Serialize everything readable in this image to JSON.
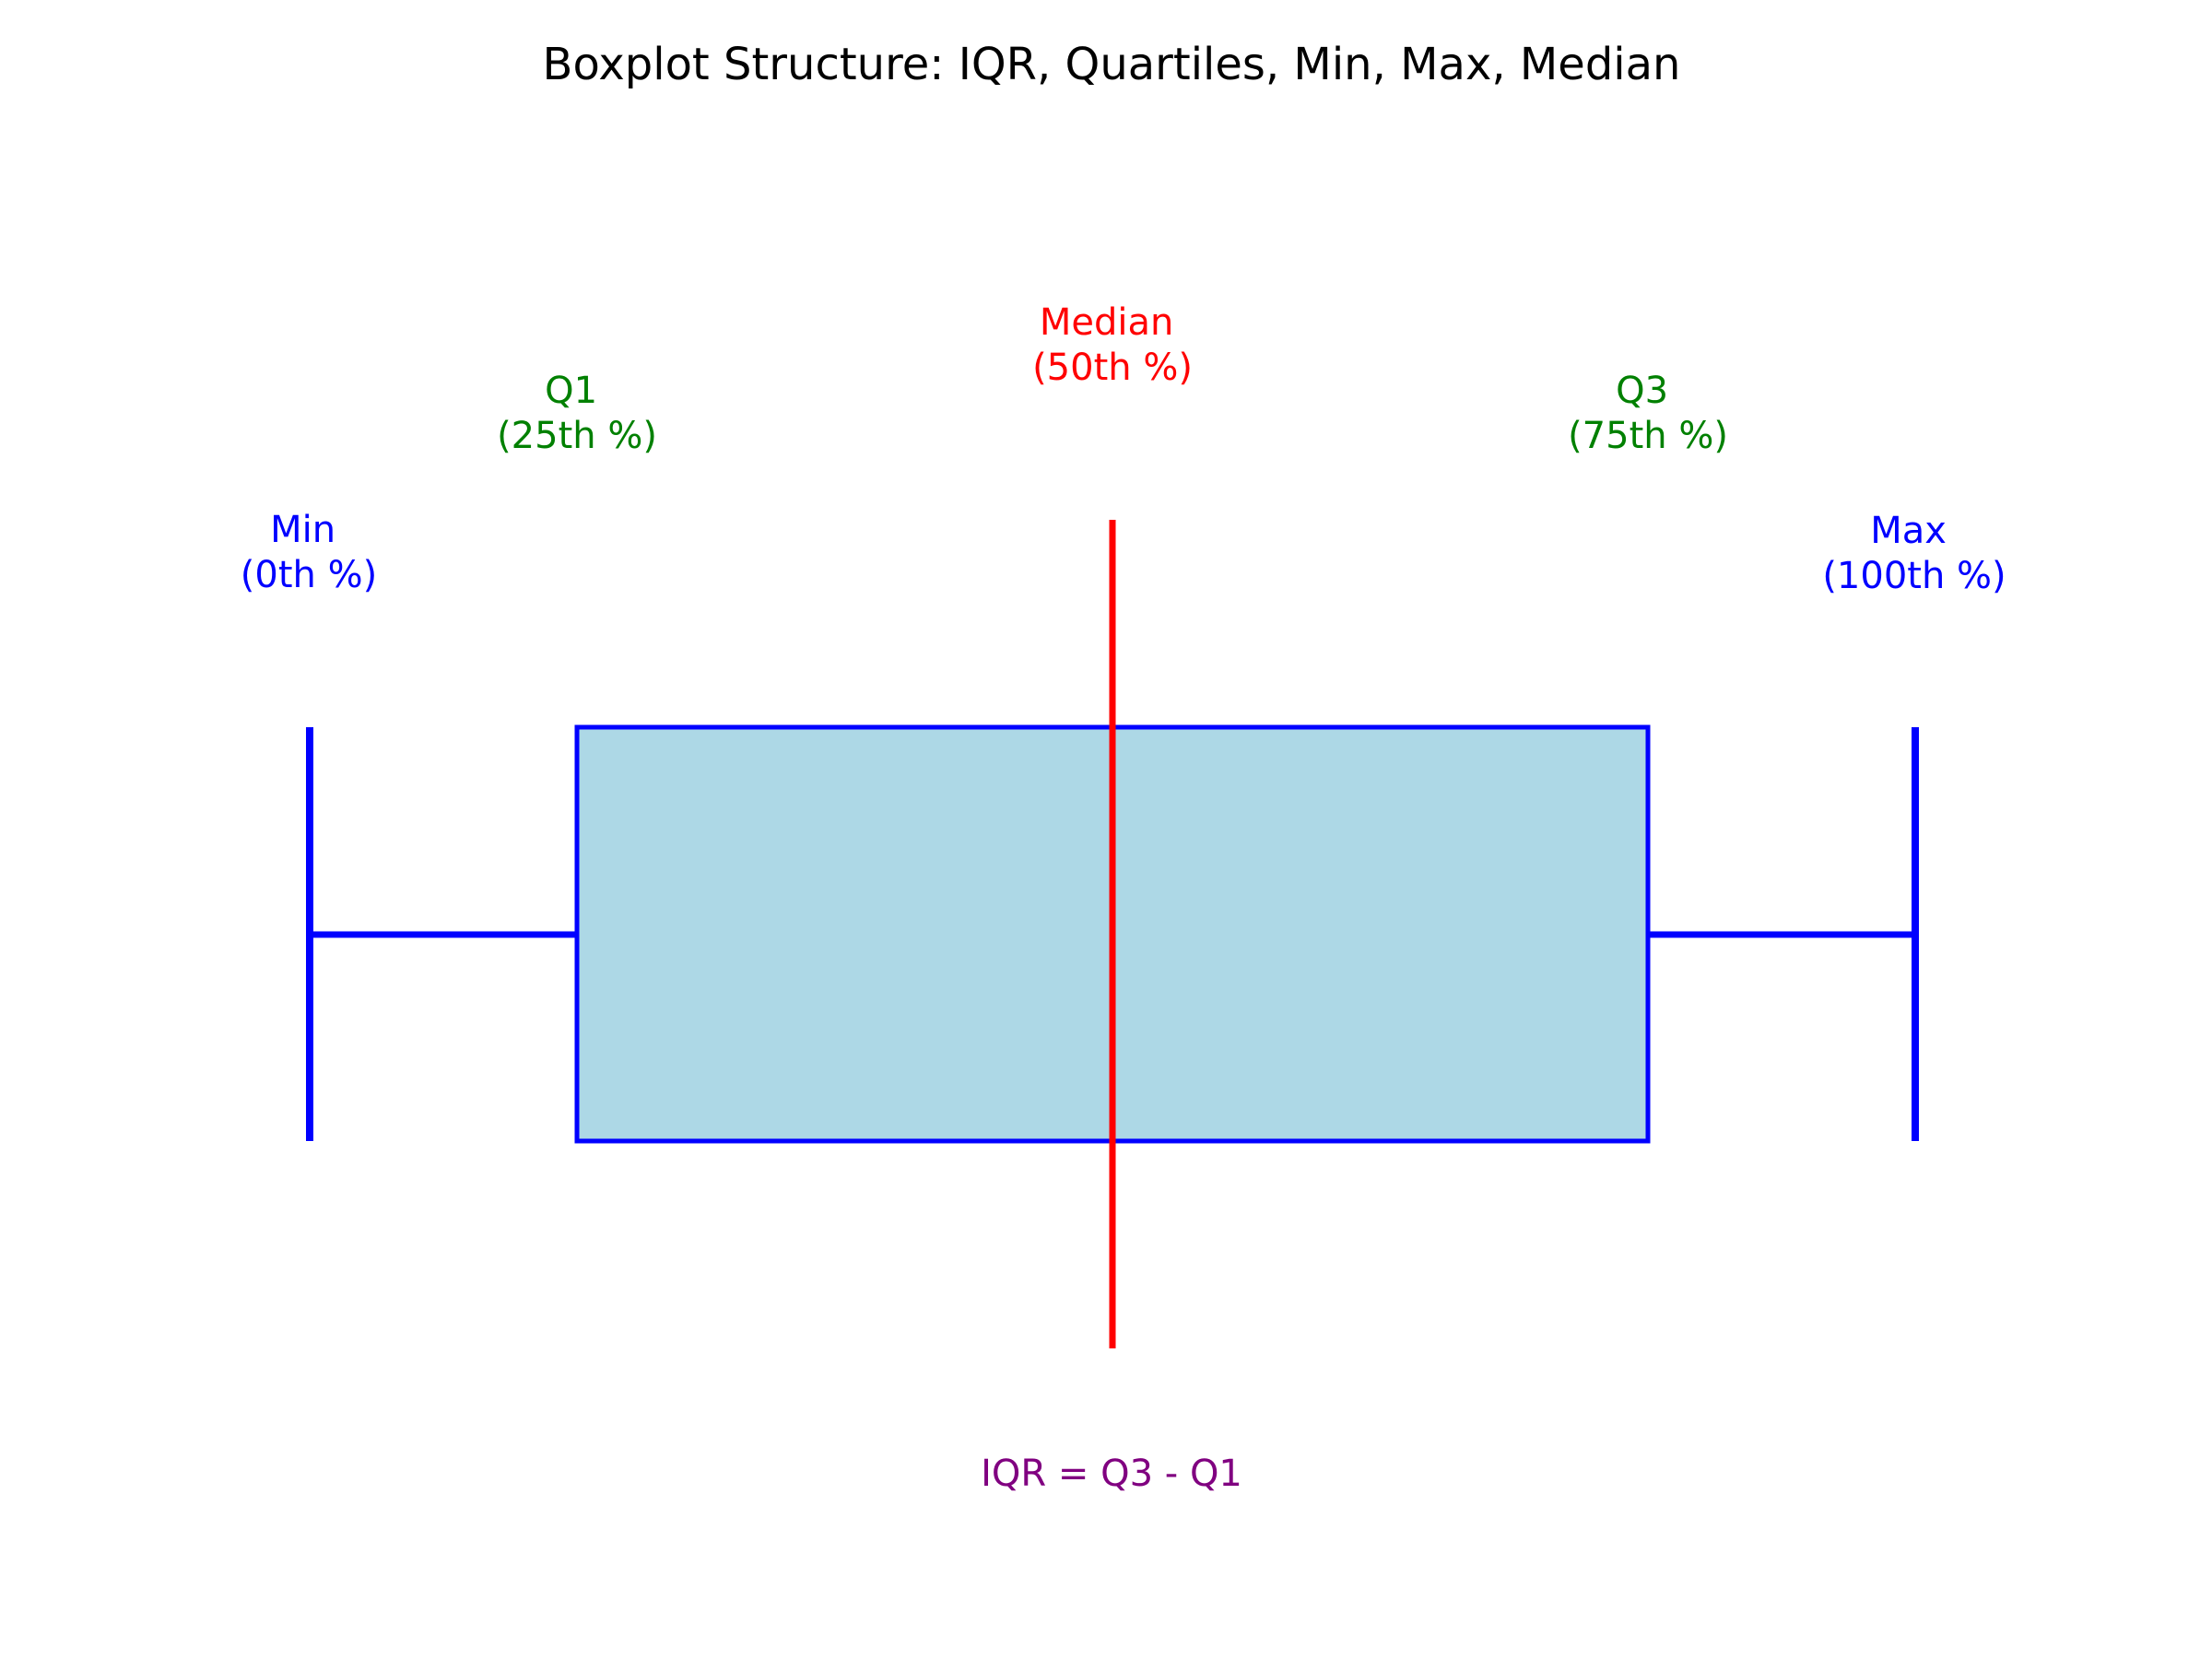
{
  "title": "Boxplot Structure: IQR, Quartiles, Min, Max, Median",
  "labels": {
    "min": {
      "name": "Min",
      "percentile": "(0th %)"
    },
    "q1": {
      "name": "Q1",
      "percentile": "(25th %)"
    },
    "median": {
      "name": "Median",
      "percentile": "(50th %)"
    },
    "q3": {
      "name": "Q3",
      "percentile": "(75th %)"
    },
    "max": {
      "name": "Max",
      "percentile": "(100th %)"
    }
  },
  "iqr_formula": "IQR = Q3 - Q1",
  "colors": {
    "box_fill": "#add8e6",
    "box_stroke": "#0000ff",
    "whisker": "#0000ff",
    "median_line": "#ff0000",
    "min_max_label": "#0000ff",
    "quartile_label": "#008000",
    "median_label": "#ff0000",
    "iqr_label": "#800080",
    "title": "#000000"
  }
}
